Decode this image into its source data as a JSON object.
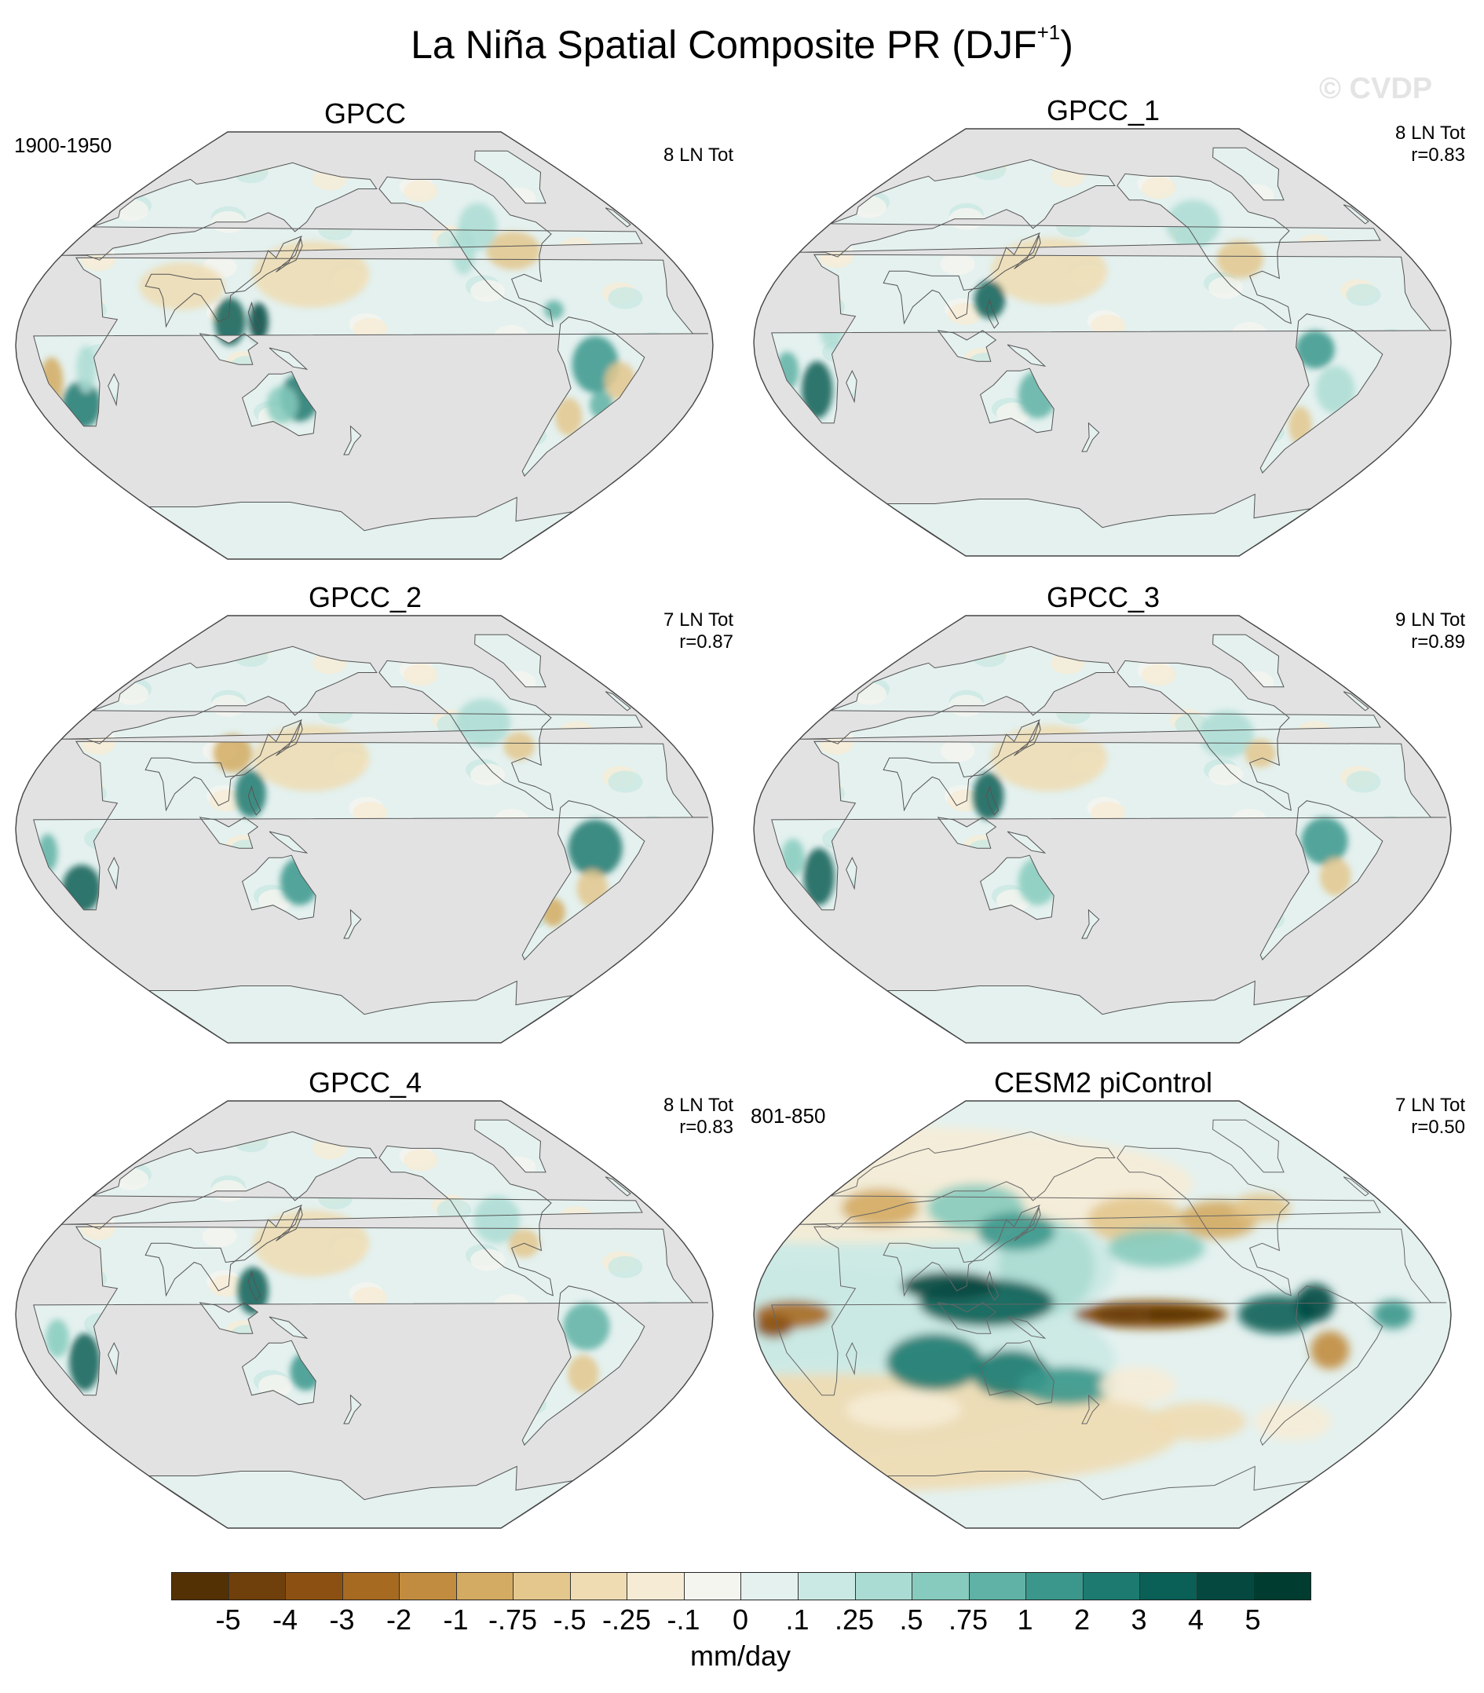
{
  "title": "La Niña Spatial Composite PR (DJF",
  "title_superscript": "+1",
  "title_suffix": ")",
  "watermark": "© CVDP",
  "ocean_color": "#e2e2e2",
  "panels": [
    {
      "name": "GPCC",
      "period": "1900-1950",
      "events": "8 LN Tot",
      "corr": ""
    },
    {
      "name": "GPCC_1",
      "period": "",
      "events": "8 LN Tot",
      "corr": "r=0.83"
    },
    {
      "name": "GPCC_2",
      "period": "",
      "events": "7 LN Tot",
      "corr": "r=0.87"
    },
    {
      "name": "GPCC_3",
      "period": "",
      "events": "9 LN Tot",
      "corr": "r=0.89"
    },
    {
      "name": "GPCC_4",
      "period": "",
      "events": "8 LN Tot",
      "corr": "r=0.83"
    },
    {
      "name": "CESM2 piControl",
      "period": "801-850",
      "events": "7 LN Tot",
      "corr": "r=0.50"
    }
  ],
  "colorbar": {
    "units": "mm/day",
    "labels": [
      "-5",
      "-4",
      "-3",
      "-2",
      "-1",
      "-.75",
      "-.5",
      "-.25",
      "-.1",
      "0",
      ".1",
      ".25",
      ".5",
      ".75",
      "1",
      "2",
      "3",
      "4",
      "5"
    ],
    "colors": [
      "#543005",
      "#6f400c",
      "#8c5112",
      "#a76a21",
      "#c18c3f",
      "#d4ab62",
      "#e3c78d",
      "#efdcb3",
      "#f6ecd6",
      "#f5f5f0",
      "#e4f1ef",
      "#cbe9e4",
      "#abdcd3",
      "#86cbbd",
      "#5fb2a5",
      "#3b978c",
      "#1c7a70",
      "#0a5f56",
      "#054840",
      "#003c30"
    ]
  }
}
